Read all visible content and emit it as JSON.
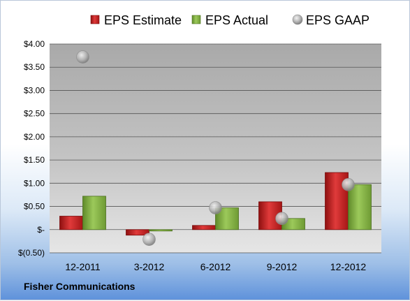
{
  "chart_data": {
    "type": "bar",
    "categories": [
      "12-2011",
      "3-2012",
      "6-2012",
      "9-2012",
      "12-2012"
    ],
    "series": [
      {
        "name": "EPS Estimate",
        "kind": "bar",
        "color": "#d42a2a",
        "values": [
          0.29,
          -0.12,
          0.09,
          0.6,
          1.23
        ]
      },
      {
        "name": "EPS Actual",
        "kind": "bar",
        "color": "#8db84a",
        "values": [
          0.72,
          -0.03,
          0.47,
          0.24,
          0.97
        ]
      },
      {
        "name": "EPS GAAP",
        "kind": "scatter",
        "color": "#b8b8b8",
        "values": [
          3.72,
          -0.21,
          0.47,
          0.24,
          0.97
        ]
      }
    ],
    "ylim": [
      -0.5,
      4.0
    ],
    "yticks": [
      {
        "value": 4.0,
        "label": "$4.00"
      },
      {
        "value": 3.5,
        "label": "$3.50"
      },
      {
        "value": 3.0,
        "label": "$3.00"
      },
      {
        "value": 2.5,
        "label": "$2.50"
      },
      {
        "value": 2.0,
        "label": "$2.00"
      },
      {
        "value": 1.5,
        "label": "$1.50"
      },
      {
        "value": 1.0,
        "label": "$1.00"
      },
      {
        "value": 0.5,
        "label": "$0.50"
      },
      {
        "value": 0.0,
        "label": "$-"
      },
      {
        "value": -0.5,
        "label": "$(0.50)"
      }
    ],
    "grid": true,
    "legend": "top"
  },
  "footer": {
    "company": "Fisher Communications"
  }
}
